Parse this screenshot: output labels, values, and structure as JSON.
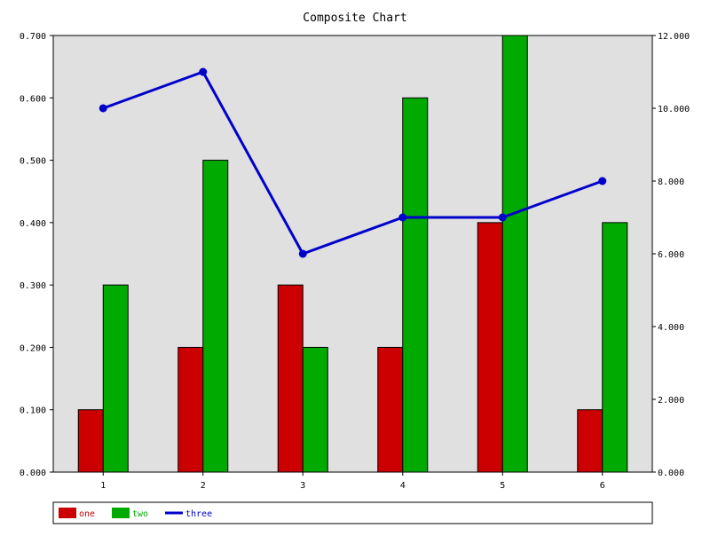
{
  "chart_data": {
    "type": "bar",
    "title": "Composite Chart",
    "xlabel": "",
    "ylabel": "",
    "categories": [
      "1",
      "2",
      "3",
      "4",
      "5",
      "6"
    ],
    "series": [
      {
        "name": "one",
        "type": "bar",
        "axis": "left",
        "color": "#cc0000",
        "values": [
          0.1,
          0.2,
          0.3,
          0.2,
          0.4,
          0.1
        ]
      },
      {
        "name": "two",
        "type": "bar",
        "axis": "left",
        "color": "#00aa00",
        "values": [
          0.3,
          0.5,
          0.2,
          0.6,
          0.7,
          0.4
        ]
      },
      {
        "name": "three",
        "type": "line",
        "axis": "right",
        "color": "#0000cc",
        "values": [
          10,
          11,
          6,
          7,
          7,
          8
        ]
      }
    ],
    "ylim": [
      0,
      0.7
    ],
    "yticks": [
      "0.000",
      "0.100",
      "0.200",
      "0.300",
      "0.400",
      "0.500",
      "0.600",
      "0.700"
    ],
    "y2lim": [
      0,
      12
    ],
    "y2ticks": [
      "0.000",
      "2.000",
      "4.000",
      "6.000",
      "8.000",
      "10.000",
      "12.000"
    ],
    "plot_background": "#e0e0e0",
    "grid": false,
    "legend_position": "bottom"
  }
}
